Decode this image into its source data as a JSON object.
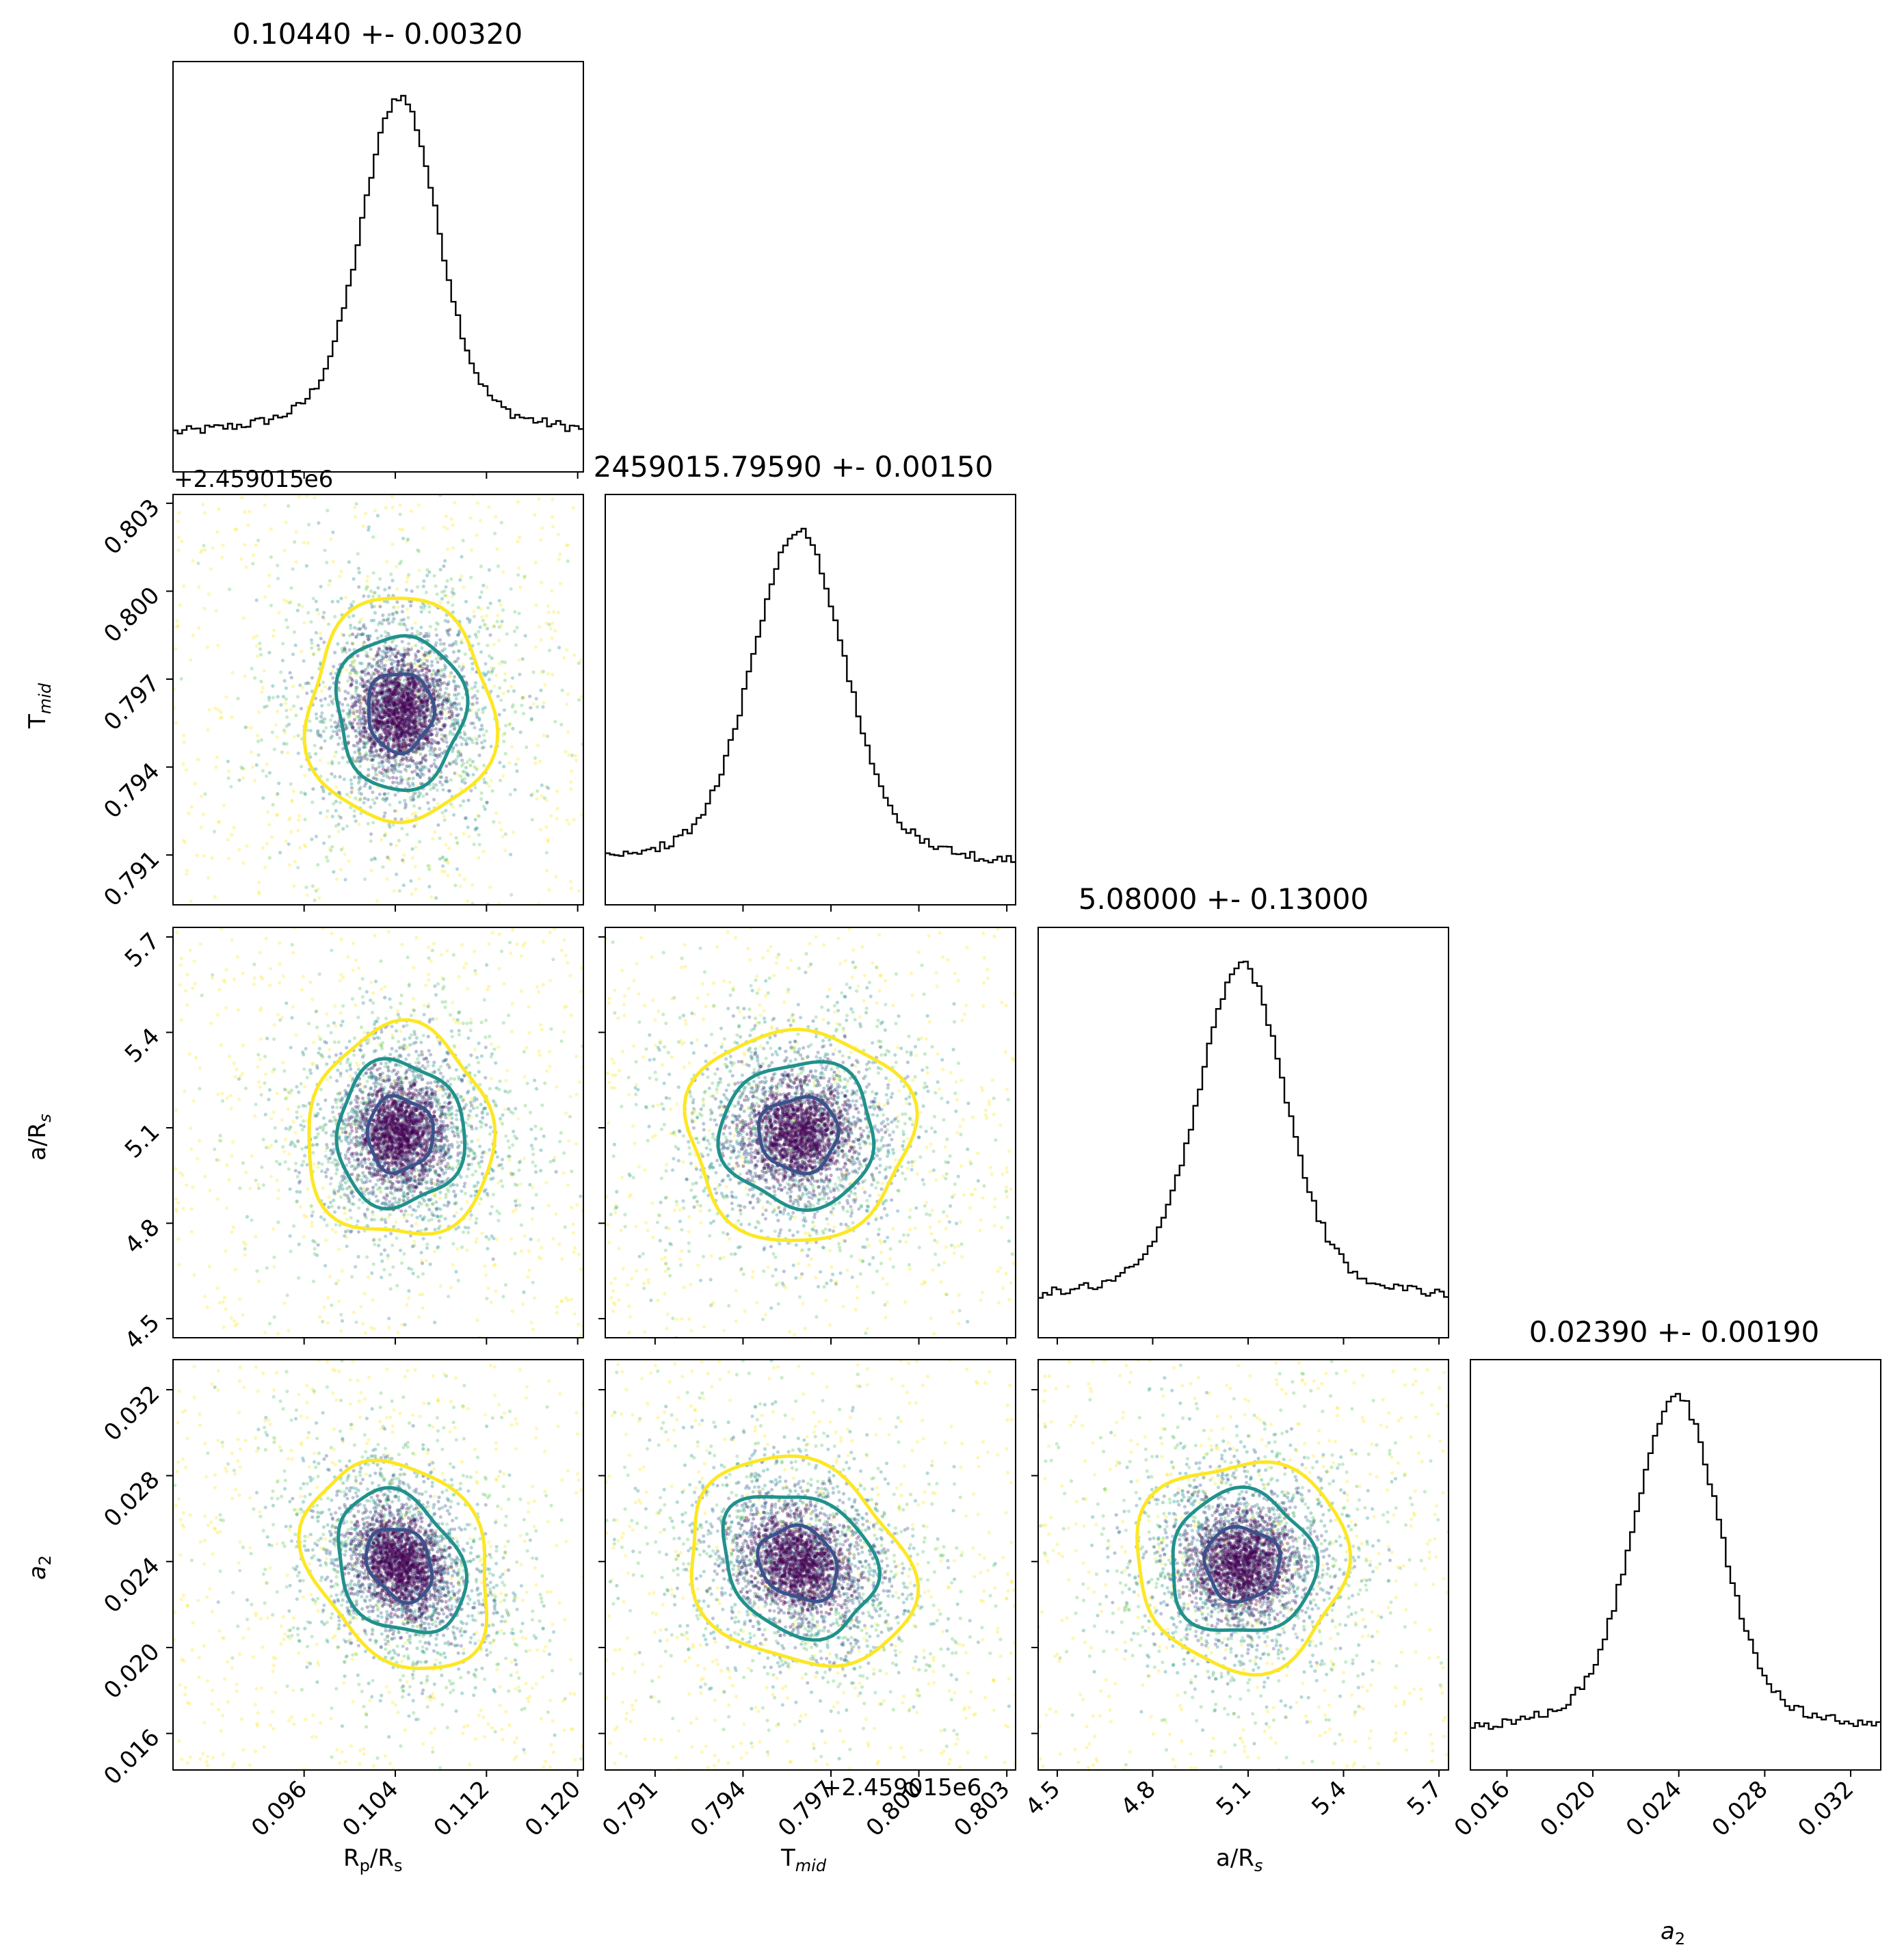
{
  "chart_data": {
    "type": "corner",
    "parameters": [
      {
        "key": "rp",
        "label_main": "R",
        "label_sub": "p",
        "label_tail": "/R",
        "label_tail_sub": "s",
        "title": "0.10440 +- 0.00320",
        "median": 0.1044,
        "sigma": 0.0032,
        "range": [
          0.0845,
          0.1205
        ],
        "ticks": [
          "0.096",
          "0.104",
          "0.112",
          "0.120"
        ],
        "tick_values": [
          0.096,
          0.104,
          0.112,
          0.12
        ],
        "offset_text": ""
      },
      {
        "key": "tmid",
        "label_main": "T",
        "label_sub": "mid",
        "label_tail": "",
        "label_tail_sub": "",
        "title": "2459015.79590 +- 0.00150",
        "median": 0.7959,
        "sigma": 0.0015,
        "range": [
          0.7893,
          0.8033
        ],
        "ticks": [
          "0.791",
          "0.794",
          "0.797",
          "0.800",
          "0.803"
        ],
        "tick_values": [
          0.791,
          0.794,
          0.797,
          0.8,
          0.803
        ],
        "offset_text": "+2.459015e6"
      },
      {
        "key": "ars",
        "label_main": "a/R",
        "label_sub": "s",
        "label_tail": "",
        "label_tail_sub": "",
        "title": "5.08000 +- 0.13000",
        "median": 5.08,
        "sigma": 0.13,
        "range": [
          4.44,
          5.73
        ],
        "ticks": [
          "4.5",
          "4.8",
          "5.1",
          "5.4",
          "5.7"
        ],
        "tick_values": [
          4.5,
          4.8,
          5.1,
          5.4,
          5.7
        ],
        "offset_text": ""
      },
      {
        "key": "a2",
        "label_main": "a",
        "label_sub": "2",
        "label_tail": "",
        "label_tail_sub": "",
        "title": "0.02390 +- 0.00190",
        "median": 0.0239,
        "sigma": 0.0019,
        "range": [
          0.0143,
          0.0334
        ],
        "ticks": [
          "0.016",
          "0.020",
          "0.024",
          "0.028",
          "0.032"
        ],
        "tick_values": [
          0.016,
          0.02,
          0.024,
          0.028,
          0.032
        ],
        "offset_text": ""
      }
    ],
    "labels": {
      "rp_axis": "R",
      "rp_axis_sub": "p",
      "rp_axis_tail": "/R",
      "rp_axis_tail_sub": "s",
      "tmid_axis": "T",
      "tmid_axis_sub": "mid",
      "ars_axis": "a/R",
      "ars_axis_sub": "s",
      "a2_axis": "a",
      "a2_axis_sub": "2",
      "offset_x": "+2.459015e6",
      "offset_y": "+2.459015e6"
    },
    "contour_levels": [
      "1-sigma",
      "2-sigma",
      "3-sigma"
    ],
    "colors": {
      "contour_inner": "#3b528b",
      "contour_mid": "#21918c",
      "contour_outer": "#fde725",
      "points": [
        "#440154",
        "#3b528b",
        "#21918c",
        "#5ec962",
        "#fde725"
      ],
      "histogram": "#000000"
    },
    "grid": false,
    "legend": "none"
  }
}
